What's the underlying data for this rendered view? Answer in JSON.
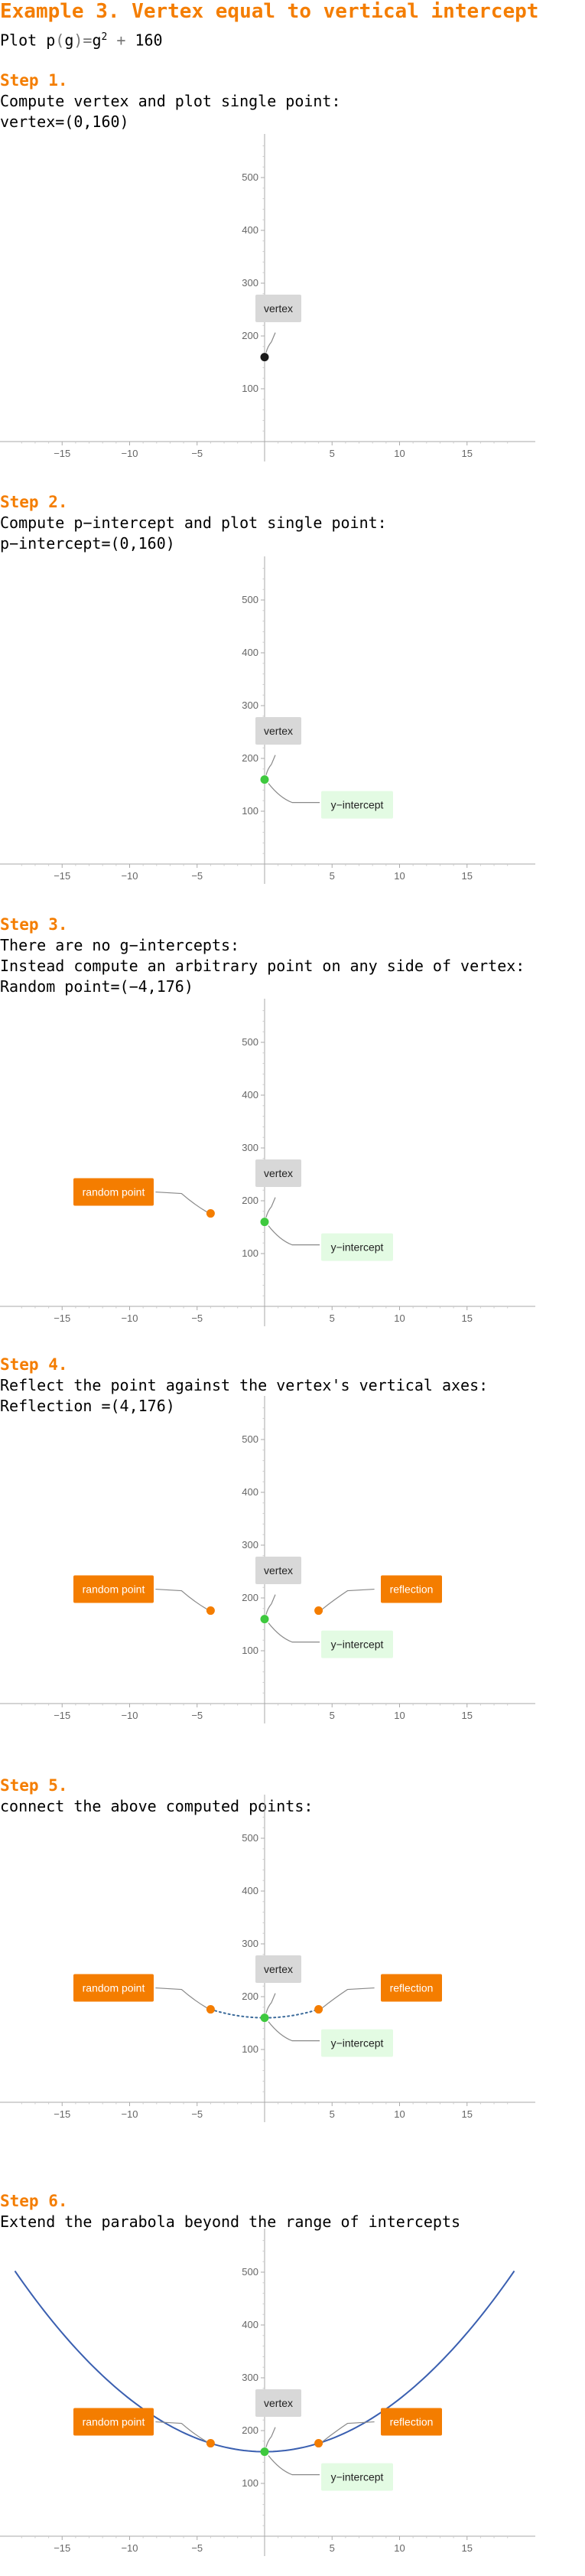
{
  "title": "Example 3. Vertex equal to vertical intercept",
  "plot_line": {
    "prefix": "Plot ",
    "fn": "p",
    "lpar": "(",
    "var": "g",
    "rpar": ")",
    "eq": "=",
    "base": "g",
    "exp": "2",
    "plus": " + ",
    "const": "160"
  },
  "colors": {
    "accent": "#f47d00",
    "green_point": "#3ec93e",
    "black_point": "#1a1a1a",
    "curve": "#3a5fb0",
    "dotted": "#3a6a9a",
    "label_gray": "#d8d8d8",
    "label_green": "#e3fbe3"
  },
  "labels": {
    "vertex": "vertex",
    "y_intercept": "y−intercept",
    "random_point": "random point",
    "reflection": "reflection"
  },
  "steps": [
    {
      "heading": "Step 1.",
      "lines": [
        "Compute vertex and plot single point:",
        "vertex=(0,160)"
      ]
    },
    {
      "heading": "Step 2.",
      "lines": [
        "Compute p−intercept and plot single point:",
        "p−intercept=(0,160)"
      ]
    },
    {
      "heading": "Step 3.",
      "lines": [
        "There are no g−intercepts:",
        "Instead compute an arbitrary point on any side of vertex:",
        "Random point=(−4,176)"
      ]
    },
    {
      "heading": "Step 4.",
      "lines": [
        "Reflect the point against the vertex's vertical axes:",
        "Reflection =(4,176)"
      ]
    },
    {
      "heading": "Step 5.",
      "lines": [
        "connect the above computed points:"
      ]
    },
    {
      "heading": "Step 6.",
      "lines": [
        "Extend the parabola beyond the range of intercepts"
      ]
    }
  ],
  "chart_data": [
    {
      "type": "scatter",
      "xlim": [
        -19,
        19
      ],
      "ylim": [
        0,
        580
      ],
      "x_ticks": [
        -15,
        -10,
        -5,
        5,
        10,
        15
      ],
      "y_ticks": [
        100,
        200,
        300,
        400,
        500
      ],
      "points": [
        {
          "x": 0,
          "y": 160,
          "color": "#1a1a1a"
        }
      ],
      "callouts": [
        "vertex"
      ],
      "curve": "none"
    },
    {
      "type": "scatter",
      "xlim": [
        -19,
        19
      ],
      "ylim": [
        0,
        580
      ],
      "x_ticks": [
        -15,
        -10,
        -5,
        5,
        10,
        15
      ],
      "y_ticks": [
        100,
        200,
        300,
        400,
        500
      ],
      "points": [
        {
          "x": 0,
          "y": 160,
          "color": "#3ec93e"
        }
      ],
      "callouts": [
        "vertex",
        "y_intercept"
      ],
      "curve": "none"
    },
    {
      "type": "scatter",
      "xlim": [
        -19,
        19
      ],
      "ylim": [
        0,
        580
      ],
      "x_ticks": [
        -15,
        -10,
        -5,
        5,
        10,
        15
      ],
      "y_ticks": [
        100,
        200,
        300,
        400,
        500
      ],
      "points": [
        {
          "x": 0,
          "y": 160,
          "color": "#3ec93e"
        },
        {
          "x": -4,
          "y": 176,
          "color": "#f47d00"
        }
      ],
      "callouts": [
        "vertex",
        "y_intercept",
        "random_point"
      ],
      "curve": "none"
    },
    {
      "type": "scatter",
      "xlim": [
        -19,
        19
      ],
      "ylim": [
        0,
        580
      ],
      "x_ticks": [
        -15,
        -10,
        -5,
        5,
        10,
        15
      ],
      "y_ticks": [
        100,
        200,
        300,
        400,
        500
      ],
      "points": [
        {
          "x": 0,
          "y": 160,
          "color": "#3ec93e"
        },
        {
          "x": -4,
          "y": 176,
          "color": "#f47d00"
        },
        {
          "x": 4,
          "y": 176,
          "color": "#f47d00"
        }
      ],
      "callouts": [
        "vertex",
        "y_intercept",
        "random_point",
        "reflection"
      ],
      "curve": "none"
    },
    {
      "type": "line",
      "xlim": [
        -19,
        19
      ],
      "ylim": [
        0,
        580
      ],
      "x_ticks": [
        -15,
        -10,
        -5,
        5,
        10,
        15
      ],
      "y_ticks": [
        100,
        200,
        300,
        400,
        500
      ],
      "points": [
        {
          "x": 0,
          "y": 160,
          "color": "#3ec93e"
        },
        {
          "x": -4,
          "y": 176,
          "color": "#f47d00"
        },
        {
          "x": 4,
          "y": 176,
          "color": "#f47d00"
        }
      ],
      "callouts": [
        "vertex",
        "y_intercept",
        "random_point",
        "reflection"
      ],
      "curve": "dotted",
      "curve_range": [
        -4,
        4
      ]
    },
    {
      "type": "line",
      "xlim": [
        -19,
        19
      ],
      "ylim": [
        0,
        580
      ],
      "x_ticks": [
        -15,
        -10,
        -5,
        5,
        10,
        15
      ],
      "y_ticks": [
        100,
        200,
        300,
        400,
        500
      ],
      "points": [
        {
          "x": 0,
          "y": 160,
          "color": "#3ec93e"
        },
        {
          "x": -4,
          "y": 176,
          "color": "#f47d00"
        },
        {
          "x": 4,
          "y": 176,
          "color": "#f47d00"
        }
      ],
      "callouts": [
        "vertex",
        "y_intercept",
        "random_point",
        "reflection"
      ],
      "curve": "solid",
      "curve_range": [
        -18.5,
        18.5
      ]
    }
  ]
}
